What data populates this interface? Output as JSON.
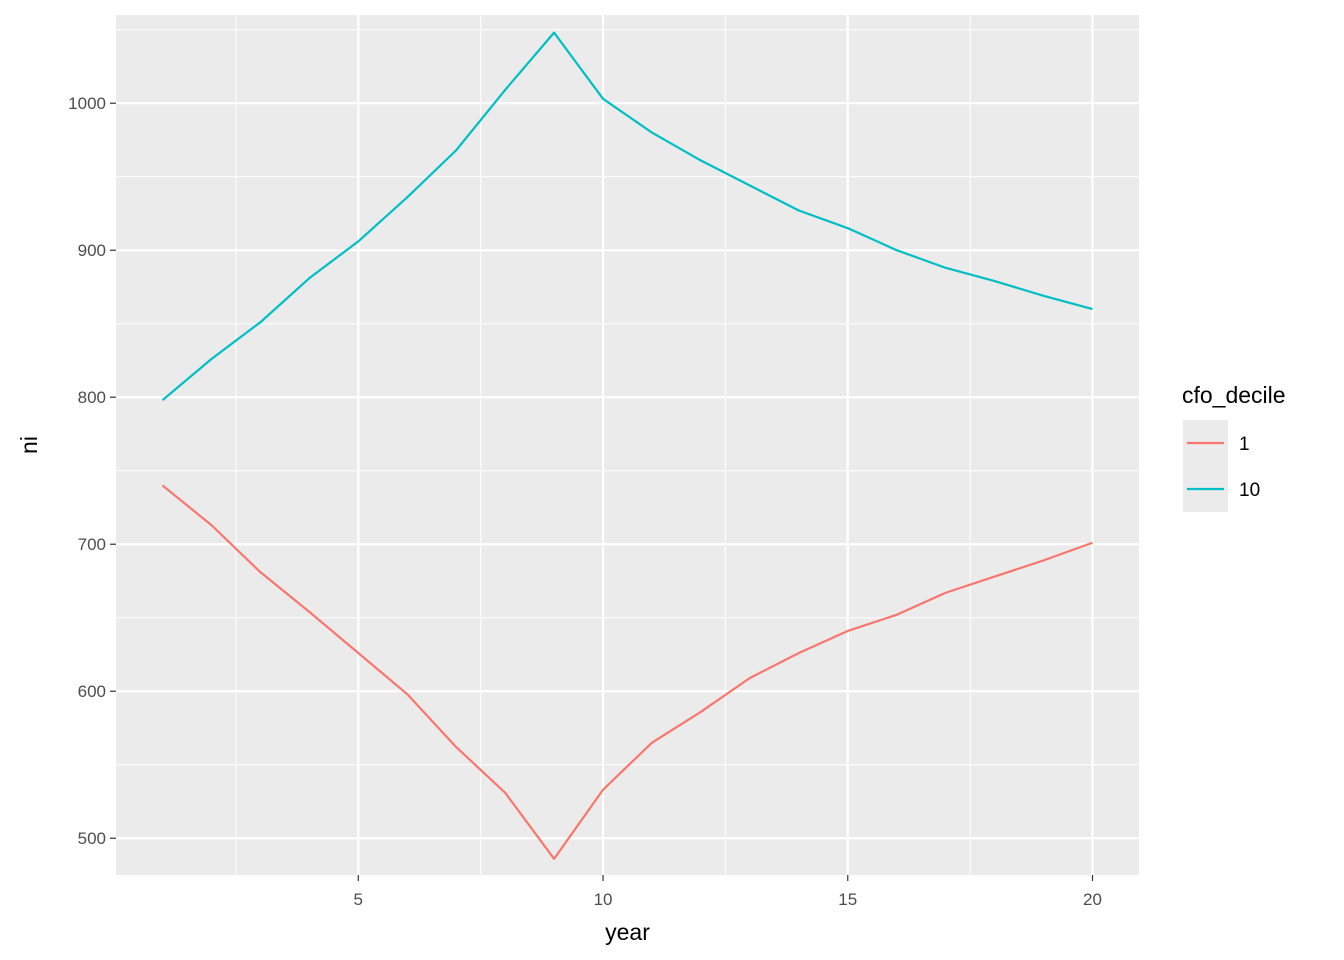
{
  "chart_data": {
    "type": "line",
    "xlabel": "year",
    "ylabel": "ni",
    "xlim": [
      0.05,
      20.95
    ],
    "ylim": [
      475,
      1060
    ],
    "x_ticks": [
      5,
      10,
      15,
      20
    ],
    "x_tick_labels": [
      "5",
      "10",
      "15",
      "20"
    ],
    "x_minor_ticks": [
      2.5,
      7.5,
      12.5,
      17.5
    ],
    "y_ticks": [
      500,
      600,
      700,
      800,
      900,
      1000
    ],
    "y_tick_labels": [
      "500",
      "600",
      "700",
      "800",
      "900",
      "1000"
    ],
    "y_minor_ticks": [
      550,
      650,
      750,
      850,
      950,
      1050
    ],
    "grid": true,
    "legend_title": "cfo_decile",
    "legend_position": "right",
    "x": [
      1,
      2,
      3,
      4,
      5,
      6,
      7,
      8,
      9,
      10,
      11,
      12,
      13,
      14,
      15,
      16,
      17,
      18,
      19,
      20
    ],
    "series": [
      {
        "name": "1",
        "color": "#F8766D",
        "values": [
          740,
          713,
          681,
          654,
          626,
          598,
          562,
          531,
          486,
          533,
          565,
          586,
          609,
          626,
          641,
          652,
          667,
          678,
          689,
          701
        ]
      },
      {
        "name": "10",
        "color": "#00BFC4",
        "values": [
          798,
          826,
          851,
          881,
          906,
          936,
          968,
          1009,
          1048,
          1003,
          980,
          961,
          944,
          927,
          915,
          900,
          888,
          879,
          869,
          860
        ]
      }
    ]
  }
}
